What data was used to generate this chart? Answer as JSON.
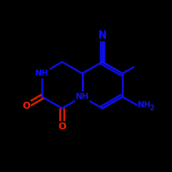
{
  "background": "#000000",
  "bond_color": "#1010ff",
  "oxygen_color": "#ff2000",
  "lw": 1.8,
  "figsize": [
    2.5,
    2.5
  ],
  "dpi": 100,
  "ring_R": 0.13,
  "cx_r": 0.6,
  "cy_r": 0.5,
  "nitrile_N_label": "N",
  "nh_upper_label": "NH",
  "nh_lower_label": "NH",
  "nh2_label": "NH",
  "nh2_sub": "2",
  "o_upper_label": "O",
  "o_lower_label": "O"
}
